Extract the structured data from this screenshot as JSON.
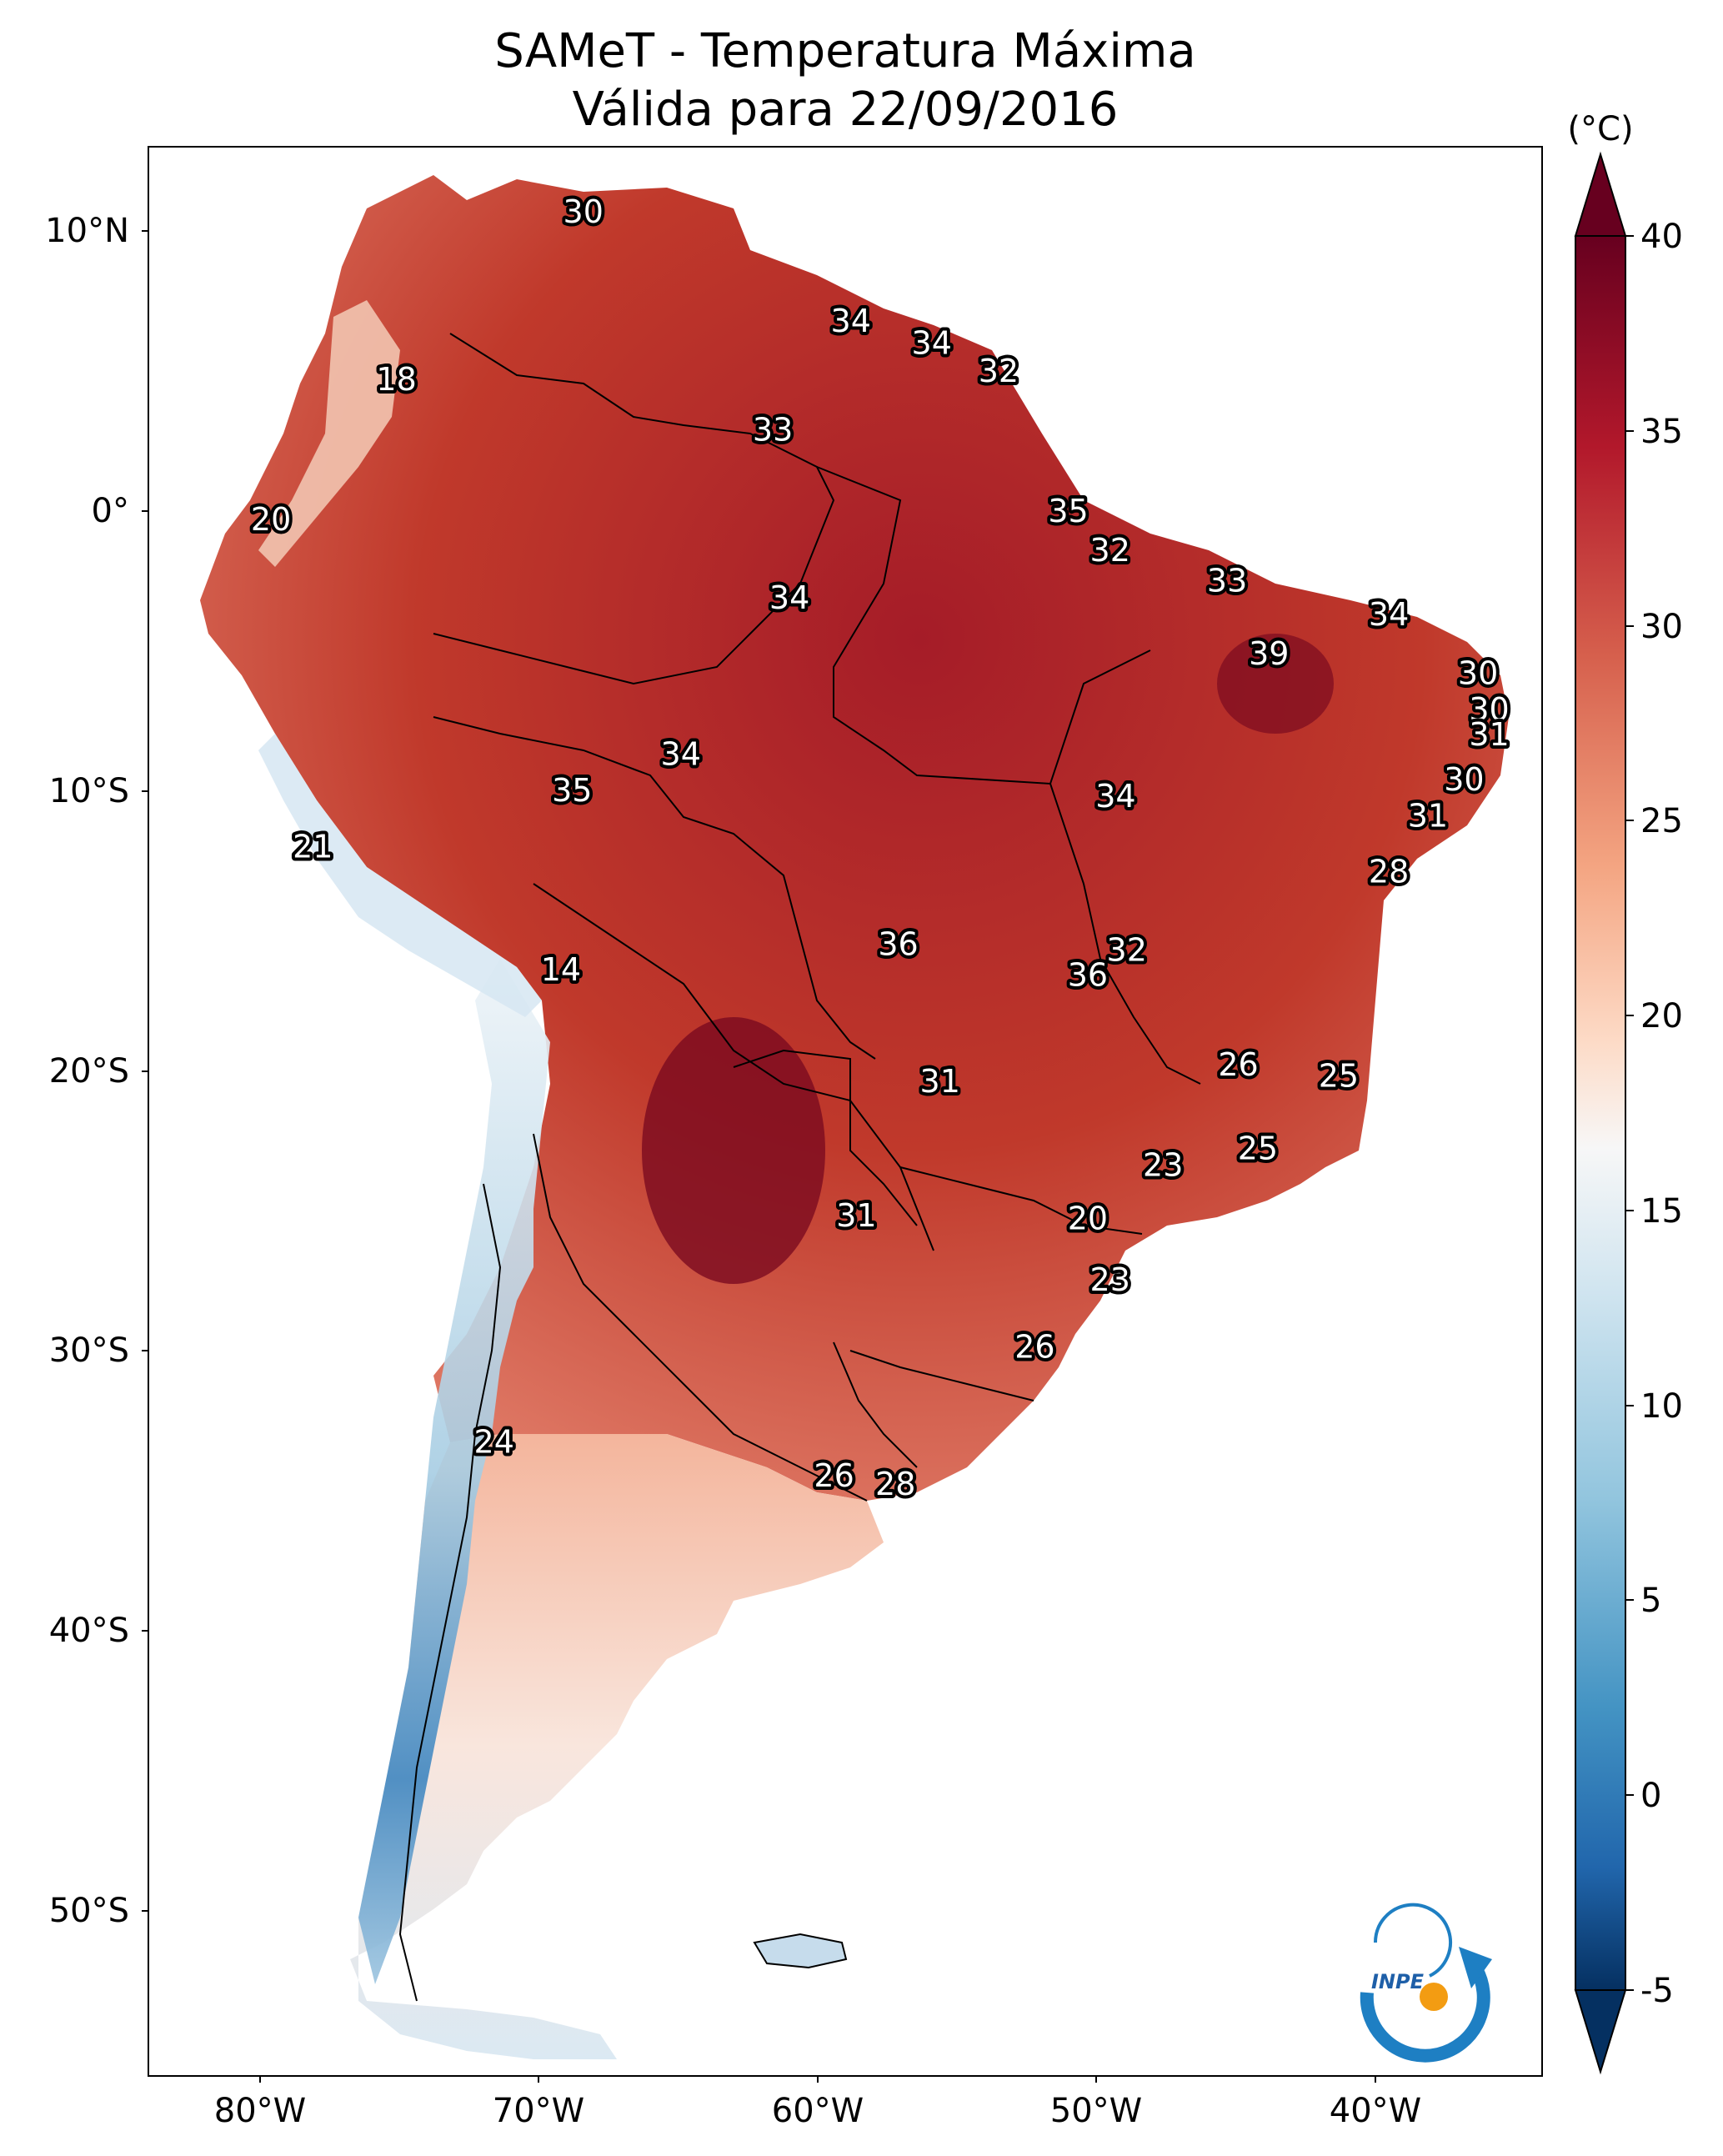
{
  "title": {
    "line1": "SAMeT - Temperatura Máxima",
    "line2": "Válida para 22/09/2016"
  },
  "map": {
    "lat_ticks": [
      "10°N",
      "0°",
      "10°S",
      "20°S",
      "30°S",
      "40°S",
      "50°S"
    ],
    "lon_ticks": [
      "80°W",
      "70°W",
      "60°W",
      "50°W",
      "40°W"
    ],
    "extent": {
      "lon_min": -83,
      "lon_max": -33,
      "lat_min": -56,
      "lat_max": 13
    },
    "station_labels": [
      {
        "value": "30",
        "lon": -67.4,
        "lat": 10.6
      },
      {
        "value": "34",
        "lon": -57.8,
        "lat": 6.7
      },
      {
        "value": "34",
        "lon": -54.9,
        "lat": 5.9
      },
      {
        "value": "32",
        "lon": -52.5,
        "lat": 4.9
      },
      {
        "value": "18",
        "lon": -74.1,
        "lat": 4.6
      },
      {
        "value": "33",
        "lon": -60.6,
        "lat": 2.8
      },
      {
        "value": "35",
        "lon": -50.0,
        "lat": -0.1
      },
      {
        "value": "20",
        "lon": -78.6,
        "lat": -0.4
      },
      {
        "value": "32",
        "lon": -48.5,
        "lat": -1.5
      },
      {
        "value": "33",
        "lon": -44.3,
        "lat": -2.6
      },
      {
        "value": "34",
        "lon": -60.0,
        "lat": -3.2
      },
      {
        "value": "34",
        "lon": -38.5,
        "lat": -3.8
      },
      {
        "value": "39",
        "lon": -42.8,
        "lat": -5.2
      },
      {
        "value": "30",
        "lon": -35.3,
        "lat": -5.9
      },
      {
        "value": "30",
        "lon": -34.9,
        "lat": -7.2
      },
      {
        "value": "31",
        "lon": -34.9,
        "lat": -8.1
      },
      {
        "value": "34",
        "lon": -63.9,
        "lat": -8.8
      },
      {
        "value": "30",
        "lon": -35.8,
        "lat": -9.7
      },
      {
        "value": "35",
        "lon": -67.8,
        "lat": -10.1
      },
      {
        "value": "34",
        "lon": -48.3,
        "lat": -10.3
      },
      {
        "value": "31",
        "lon": -37.1,
        "lat": -11.0
      },
      {
        "value": "21",
        "lon": -77.1,
        "lat": -12.1
      },
      {
        "value": "28",
        "lon": -38.5,
        "lat": -13.0
      },
      {
        "value": "36",
        "lon": -56.1,
        "lat": -15.6
      },
      {
        "value": "32",
        "lon": -47.9,
        "lat": -15.8
      },
      {
        "value": "36",
        "lon": -49.3,
        "lat": -16.7
      },
      {
        "value": "14",
        "lon": -68.2,
        "lat": -16.5
      },
      {
        "value": "26",
        "lon": -43.9,
        "lat": -19.9
      },
      {
        "value": "25",
        "lon": -40.3,
        "lat": -20.3
      },
      {
        "value": "31",
        "lon": -54.6,
        "lat": -20.5
      },
      {
        "value": "25",
        "lon": -43.2,
        "lat": -22.9
      },
      {
        "value": "23",
        "lon": -46.6,
        "lat": -23.5
      },
      {
        "value": "31",
        "lon": -57.6,
        "lat": -25.3
      },
      {
        "value": "20",
        "lon": -49.3,
        "lat": -25.4
      },
      {
        "value": "23",
        "lon": -48.5,
        "lat": -27.6
      },
      {
        "value": "26",
        "lon": -51.2,
        "lat": -30.0
      },
      {
        "value": "24",
        "lon": -70.6,
        "lat": -33.4
      },
      {
        "value": "26",
        "lon": -58.4,
        "lat": -34.6
      },
      {
        "value": "28",
        "lon": -56.2,
        "lat": -34.9
      }
    ]
  },
  "colorbar": {
    "unit_label": "(°C)",
    "tick_labels": [
      "40",
      "35",
      "30",
      "25",
      "20",
      "15",
      "10",
      "5",
      "0",
      "-5"
    ],
    "range": [
      -5,
      40
    ],
    "colors": {
      "max": "#67001f",
      "warm": "#c0392b",
      "mid_warm": "#f4a582",
      "neutral": "#f7f7f7",
      "mid_cool": "#92c5de",
      "cool": "#2166ac",
      "min": "#053061"
    }
  },
  "logo": {
    "text": "INPE"
  }
}
